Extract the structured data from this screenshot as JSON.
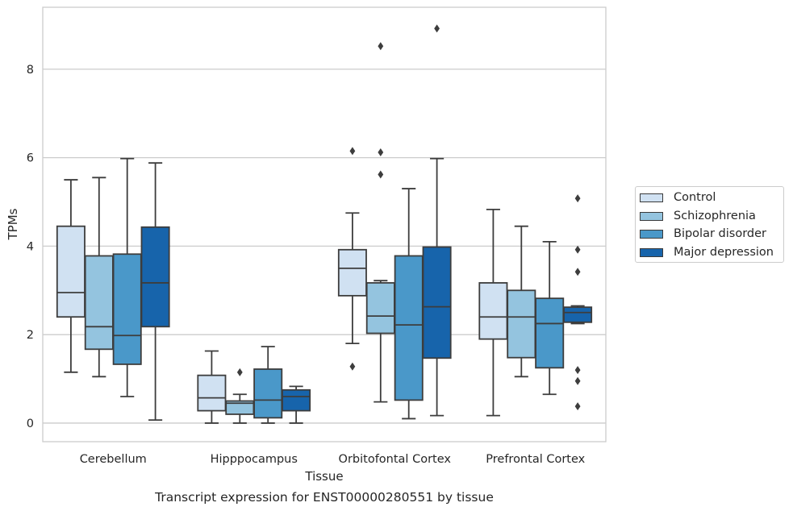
{
  "caption": "Transcript expression for ENST00000280551 by tissue",
  "chart_data": {
    "type": "box",
    "xlabel": "Tissue",
    "ylabel": "TPMs",
    "categories": [
      "Cerebellum",
      "Hipppocampus",
      "Orbitofontal Cortex",
      "Prefrontal Cortex"
    ],
    "ylim": [
      -0.42,
      9.4
    ],
    "yticks": [
      0,
      2,
      4,
      6,
      8
    ],
    "grid": "horizontal",
    "legend_position": "right",
    "series": [
      {
        "name": "Control",
        "color": "#d0e1f2",
        "boxes": [
          {
            "whislo": 1.15,
            "q1": 2.4,
            "med": 2.95,
            "q3": 4.45,
            "whishi": 5.5,
            "fliers": []
          },
          {
            "whislo": 0.0,
            "q1": 0.28,
            "med": 0.57,
            "q3": 1.08,
            "whishi": 1.63,
            "fliers": []
          },
          {
            "whislo": 1.8,
            "q1": 2.88,
            "med": 3.5,
            "q3": 3.92,
            "whishi": 4.75,
            "fliers": [
              1.28,
              6.15
            ]
          },
          {
            "whislo": 0.17,
            "q1": 1.9,
            "med": 2.4,
            "q3": 3.17,
            "whishi": 4.83,
            "fliers": []
          }
        ]
      },
      {
        "name": "Schizophrenia",
        "color": "#94c4df",
        "boxes": [
          {
            "whislo": 1.05,
            "q1": 1.67,
            "med": 2.18,
            "q3": 3.78,
            "whishi": 5.55,
            "fliers": []
          },
          {
            "whislo": 0.0,
            "q1": 0.2,
            "med": 0.45,
            "q3": 0.5,
            "whishi": 0.65,
            "fliers": [
              1.15
            ]
          },
          {
            "whislo": 0.48,
            "q1": 2.03,
            "med": 2.42,
            "q3": 3.17,
            "whishi": 3.22,
            "fliers": [
              5.62,
              6.12,
              8.52
            ]
          },
          {
            "whislo": 1.05,
            "q1": 1.48,
            "med": 2.4,
            "q3": 3.0,
            "whishi": 4.45,
            "fliers": []
          }
        ]
      },
      {
        "name": "Bipolar disorder",
        "color": "#4a98c9",
        "boxes": [
          {
            "whislo": 0.6,
            "q1": 1.33,
            "med": 1.98,
            "q3": 3.82,
            "whishi": 5.98,
            "fliers": []
          },
          {
            "whislo": 0.0,
            "q1": 0.12,
            "med": 0.52,
            "q3": 1.22,
            "whishi": 1.73,
            "fliers": []
          },
          {
            "whislo": 0.1,
            "q1": 0.52,
            "med": 2.22,
            "q3": 3.78,
            "whishi": 5.3,
            "fliers": []
          },
          {
            "whislo": 0.65,
            "q1": 1.25,
            "med": 2.25,
            "q3": 2.82,
            "whishi": 4.1,
            "fliers": []
          }
        ]
      },
      {
        "name": "Major depression",
        "color": "#1764ab",
        "boxes": [
          {
            "whislo": 0.07,
            "q1": 2.18,
            "med": 3.17,
            "q3": 4.43,
            "whishi": 5.88,
            "fliers": []
          },
          {
            "whislo": 0.0,
            "q1": 0.28,
            "med": 0.6,
            "q3": 0.75,
            "whishi": 0.83,
            "fliers": []
          },
          {
            "whislo": 0.17,
            "q1": 1.47,
            "med": 2.63,
            "q3": 3.98,
            "whishi": 5.98,
            "fliers": [
              8.92
            ]
          },
          {
            "whislo": 2.25,
            "q1": 2.28,
            "med": 2.5,
            "q3": 2.62,
            "whishi": 2.65,
            "fliers": [
              0.38,
              0.95,
              1.2,
              3.42,
              3.92,
              5.08
            ]
          }
        ]
      }
    ]
  }
}
